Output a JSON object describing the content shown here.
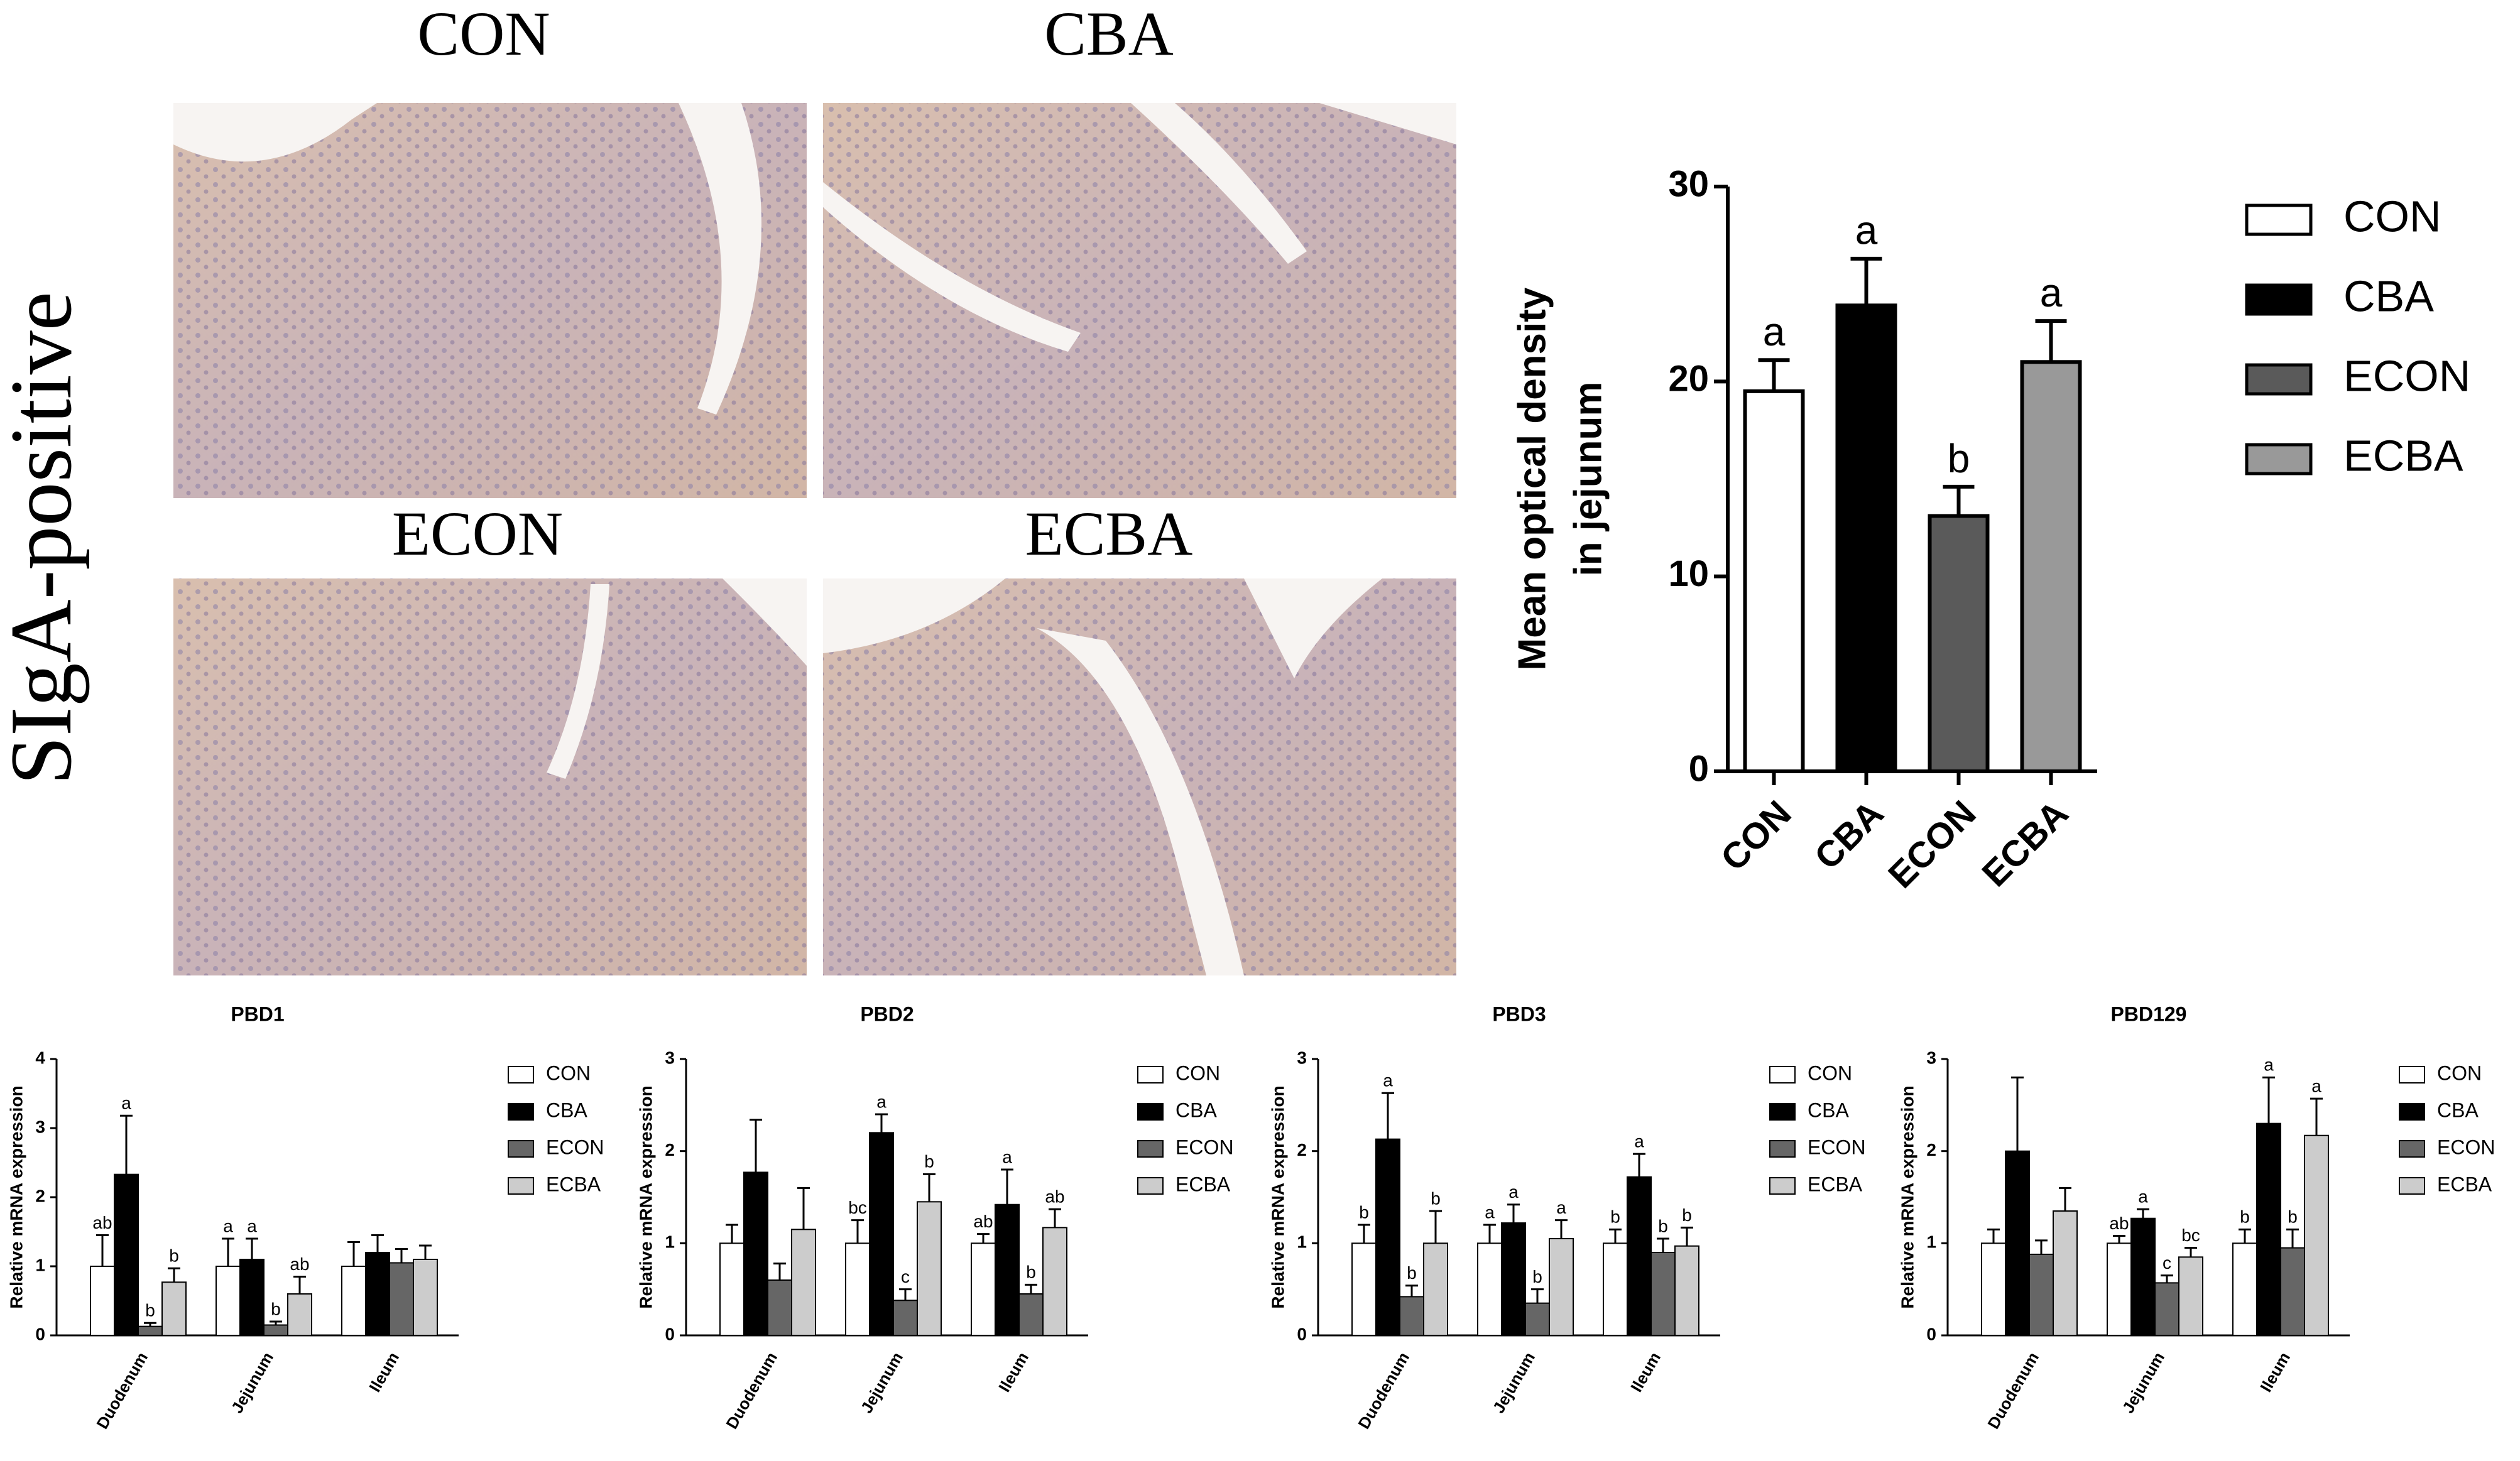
{
  "figure": {
    "row_label": "SIgA-positive",
    "image_labels": [
      "CON",
      "CBA",
      "ECON",
      "ECBA"
    ]
  },
  "chart_data": [
    {
      "type": "bar",
      "ylabel": [
        "Mean optical density",
        "in jejunum"
      ],
      "categories": [
        "CON",
        "CBA",
        "ECON",
        "ECBA"
      ],
      "values": [
        19.5,
        23.9,
        13.1,
        21.0
      ],
      "errors": [
        1.6,
        2.4,
        1.5,
        2.1
      ],
      "labels": [
        "a",
        "a",
        "b",
        "a"
      ],
      "colors": [
        "#ffffff",
        "#000000",
        "#5a5a5a",
        "#999999"
      ],
      "ylim": [
        0,
        30
      ],
      "yticks": [
        0,
        10,
        20,
        30
      ],
      "legend": "right"
    },
    {
      "type": "grouped_bar",
      "title": "PBD1",
      "ylabel": "Relative mRNA expression",
      "categories": [
        "Duodenum",
        "Jejunum",
        "Ileum"
      ],
      "series": [
        {
          "name": "CON",
          "color": "#ffffff",
          "values": [
            1.0,
            1.0,
            1.0
          ],
          "errors": [
            0.45,
            0.4,
            0.35
          ],
          "labels": [
            "ab",
            "a",
            null
          ]
        },
        {
          "name": "CBA",
          "color": "#000000",
          "values": [
            2.33,
            1.1,
            1.2
          ],
          "errors": [
            0.85,
            0.3,
            0.25
          ],
          "labels": [
            "a",
            "a",
            null
          ]
        },
        {
          "name": "ECON",
          "color": "#666666",
          "values": [
            0.13,
            0.15,
            1.05
          ],
          "errors": [
            0.05,
            0.05,
            0.2
          ],
          "labels": [
            "b",
            "b",
            null
          ]
        },
        {
          "name": "ECBA",
          "color": "#cccccc",
          "values": [
            0.77,
            0.6,
            1.1
          ],
          "errors": [
            0.2,
            0.25,
            0.2
          ],
          "labels": [
            "b",
            "ab",
            null
          ]
        }
      ],
      "ylim": [
        0,
        4
      ],
      "yticks": [
        0,
        1,
        2,
        3,
        4
      ],
      "legend": "right"
    },
    {
      "type": "grouped_bar",
      "title": "PBD2",
      "ylabel": "Relative mRNA expression",
      "categories": [
        "Duodenum",
        "Jejunum",
        "Ileum"
      ],
      "series": [
        {
          "name": "CON",
          "color": "#ffffff",
          "values": [
            1.0,
            1.0,
            1.0
          ],
          "errors": [
            0.2,
            0.25,
            0.1
          ],
          "labels": [
            null,
            "bc",
            "ab"
          ]
        },
        {
          "name": "CBA",
          "color": "#000000",
          "values": [
            1.77,
            2.2,
            1.42
          ],
          "errors": [
            0.57,
            0.2,
            0.38
          ],
          "labels": [
            null,
            "a",
            "a"
          ]
        },
        {
          "name": "ECON",
          "color": "#666666",
          "values": [
            0.6,
            0.38,
            0.45
          ],
          "errors": [
            0.18,
            0.12,
            0.1
          ],
          "labels": [
            null,
            "c",
            "b"
          ]
        },
        {
          "name": "ECBA",
          "color": "#cccccc",
          "values": [
            1.15,
            1.45,
            1.17
          ],
          "errors": [
            0.45,
            0.3,
            0.2
          ],
          "labels": [
            null,
            "b",
            "ab"
          ]
        }
      ],
      "ylim": [
        0,
        3
      ],
      "yticks": [
        0,
        1,
        2,
        3
      ],
      "legend": "right"
    },
    {
      "type": "grouped_bar",
      "title": "PBD3",
      "ylabel": "Relative mRNA expression",
      "categories": [
        "Duodenum",
        "Jejunum",
        "Ileum"
      ],
      "series": [
        {
          "name": "CON",
          "color": "#ffffff",
          "values": [
            1.0,
            1.0,
            1.0
          ],
          "errors": [
            0.2,
            0.2,
            0.15
          ],
          "labels": [
            "b",
            "a",
            "b"
          ]
        },
        {
          "name": "CBA",
          "color": "#000000",
          "values": [
            2.13,
            1.22,
            1.72
          ],
          "errors": [
            0.5,
            0.2,
            0.25
          ],
          "labels": [
            "a",
            "a",
            "a"
          ]
        },
        {
          "name": "ECON",
          "color": "#666666",
          "values": [
            0.42,
            0.35,
            0.9
          ],
          "errors": [
            0.12,
            0.15,
            0.15
          ],
          "labels": [
            "b",
            "b",
            "b"
          ]
        },
        {
          "name": "ECBA",
          "color": "#cccccc",
          "values": [
            1.0,
            1.05,
            0.97
          ],
          "errors": [
            0.35,
            0.2,
            0.2
          ],
          "labels": [
            "b",
            "a",
            "b"
          ]
        }
      ],
      "ylim": [
        0,
        3
      ],
      "yticks": [
        0,
        1,
        2,
        3
      ],
      "legend": "right"
    },
    {
      "type": "grouped_bar",
      "title": "PBD129",
      "ylabel": "Relative mRNA expression",
      "categories": [
        "Duodenum",
        "Jejunum",
        "Ileum"
      ],
      "series": [
        {
          "name": "CON",
          "color": "#ffffff",
          "values": [
            1.0,
            1.0,
            1.0
          ],
          "errors": [
            0.15,
            0.08,
            0.15
          ],
          "labels": [
            null,
            "ab",
            "b"
          ]
        },
        {
          "name": "CBA",
          "color": "#000000",
          "values": [
            2.0,
            1.27,
            2.3
          ],
          "errors": [
            0.8,
            0.1,
            0.5
          ],
          "labels": [
            null,
            "a",
            "a"
          ]
        },
        {
          "name": "ECON",
          "color": "#666666",
          "values": [
            0.88,
            0.57,
            0.95
          ],
          "errors": [
            0.15,
            0.08,
            0.2
          ],
          "labels": [
            null,
            "c",
            "b"
          ]
        },
        {
          "name": "ECBA",
          "color": "#cccccc",
          "values": [
            1.35,
            0.85,
            2.17
          ],
          "errors": [
            0.25,
            0.1,
            0.4
          ],
          "labels": [
            null,
            "bc",
            "a"
          ]
        }
      ],
      "ylim": [
        0,
        3
      ],
      "yticks": [
        0,
        1,
        2,
        3
      ],
      "legend": "right"
    }
  ]
}
